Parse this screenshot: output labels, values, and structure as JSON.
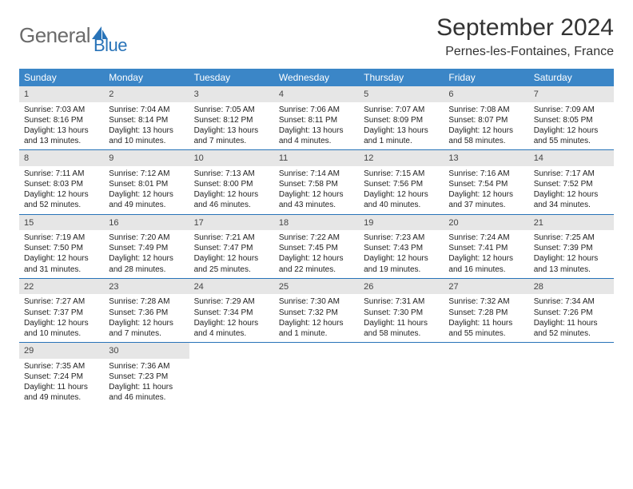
{
  "brand": {
    "name_a": "General",
    "name_b": "Blue"
  },
  "title": "September 2024",
  "location": "Pernes-les-Fontaines, France",
  "colors": {
    "accent": "#3b86c7",
    "accent_border": "#2873b8",
    "daynum_bg": "#e6e6e6",
    "text": "#222222",
    "header_text": "#ffffff"
  },
  "fonts": {
    "title_size": 30,
    "location_size": 16,
    "head_size": 12,
    "body_size": 10
  },
  "weekdays": [
    "Sunday",
    "Monday",
    "Tuesday",
    "Wednesday",
    "Thursday",
    "Friday",
    "Saturday"
  ],
  "layout": {
    "columns": 7,
    "rows": 5
  },
  "days": [
    {
      "n": "1",
      "sunrise": "7:03 AM",
      "sunset": "8:16 PM",
      "daylight": "13 hours and 13 minutes."
    },
    {
      "n": "2",
      "sunrise": "7:04 AM",
      "sunset": "8:14 PM",
      "daylight": "13 hours and 10 minutes."
    },
    {
      "n": "3",
      "sunrise": "7:05 AM",
      "sunset": "8:12 PM",
      "daylight": "13 hours and 7 minutes."
    },
    {
      "n": "4",
      "sunrise": "7:06 AM",
      "sunset": "8:11 PM",
      "daylight": "13 hours and 4 minutes."
    },
    {
      "n": "5",
      "sunrise": "7:07 AM",
      "sunset": "8:09 PM",
      "daylight": "13 hours and 1 minute."
    },
    {
      "n": "6",
      "sunrise": "7:08 AM",
      "sunset": "8:07 PM",
      "daylight": "12 hours and 58 minutes."
    },
    {
      "n": "7",
      "sunrise": "7:09 AM",
      "sunset": "8:05 PM",
      "daylight": "12 hours and 55 minutes."
    },
    {
      "n": "8",
      "sunrise": "7:11 AM",
      "sunset": "8:03 PM",
      "daylight": "12 hours and 52 minutes."
    },
    {
      "n": "9",
      "sunrise": "7:12 AM",
      "sunset": "8:01 PM",
      "daylight": "12 hours and 49 minutes."
    },
    {
      "n": "10",
      "sunrise": "7:13 AM",
      "sunset": "8:00 PM",
      "daylight": "12 hours and 46 minutes."
    },
    {
      "n": "11",
      "sunrise": "7:14 AM",
      "sunset": "7:58 PM",
      "daylight": "12 hours and 43 minutes."
    },
    {
      "n": "12",
      "sunrise": "7:15 AM",
      "sunset": "7:56 PM",
      "daylight": "12 hours and 40 minutes."
    },
    {
      "n": "13",
      "sunrise": "7:16 AM",
      "sunset": "7:54 PM",
      "daylight": "12 hours and 37 minutes."
    },
    {
      "n": "14",
      "sunrise": "7:17 AM",
      "sunset": "7:52 PM",
      "daylight": "12 hours and 34 minutes."
    },
    {
      "n": "15",
      "sunrise": "7:19 AM",
      "sunset": "7:50 PM",
      "daylight": "12 hours and 31 minutes."
    },
    {
      "n": "16",
      "sunrise": "7:20 AM",
      "sunset": "7:49 PM",
      "daylight": "12 hours and 28 minutes."
    },
    {
      "n": "17",
      "sunrise": "7:21 AM",
      "sunset": "7:47 PM",
      "daylight": "12 hours and 25 minutes."
    },
    {
      "n": "18",
      "sunrise": "7:22 AM",
      "sunset": "7:45 PM",
      "daylight": "12 hours and 22 minutes."
    },
    {
      "n": "19",
      "sunrise": "7:23 AM",
      "sunset": "7:43 PM",
      "daylight": "12 hours and 19 minutes."
    },
    {
      "n": "20",
      "sunrise": "7:24 AM",
      "sunset": "7:41 PM",
      "daylight": "12 hours and 16 minutes."
    },
    {
      "n": "21",
      "sunrise": "7:25 AM",
      "sunset": "7:39 PM",
      "daylight": "12 hours and 13 minutes."
    },
    {
      "n": "22",
      "sunrise": "7:27 AM",
      "sunset": "7:37 PM",
      "daylight": "12 hours and 10 minutes."
    },
    {
      "n": "23",
      "sunrise": "7:28 AM",
      "sunset": "7:36 PM",
      "daylight": "12 hours and 7 minutes."
    },
    {
      "n": "24",
      "sunrise": "7:29 AM",
      "sunset": "7:34 PM",
      "daylight": "12 hours and 4 minutes."
    },
    {
      "n": "25",
      "sunrise": "7:30 AM",
      "sunset": "7:32 PM",
      "daylight": "12 hours and 1 minute."
    },
    {
      "n": "26",
      "sunrise": "7:31 AM",
      "sunset": "7:30 PM",
      "daylight": "11 hours and 58 minutes."
    },
    {
      "n": "27",
      "sunrise": "7:32 AM",
      "sunset": "7:28 PM",
      "daylight": "11 hours and 55 minutes."
    },
    {
      "n": "28",
      "sunrise": "7:34 AM",
      "sunset": "7:26 PM",
      "daylight": "11 hours and 52 minutes."
    },
    {
      "n": "29",
      "sunrise": "7:35 AM",
      "sunset": "7:24 PM",
      "daylight": "11 hours and 49 minutes."
    },
    {
      "n": "30",
      "sunrise": "7:36 AM",
      "sunset": "7:23 PM",
      "daylight": "11 hours and 46 minutes."
    }
  ],
  "labels": {
    "sunrise": "Sunrise:",
    "sunset": "Sunset:",
    "daylight": "Daylight:"
  }
}
